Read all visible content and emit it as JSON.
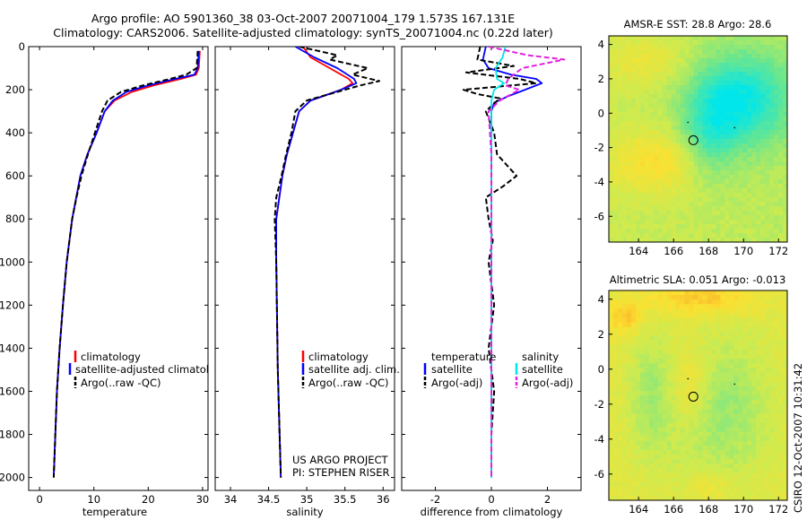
{
  "figure": {
    "title_line1": "Argo profile: AO 5901360_38 03-Oct-2007 20071004_179 1.573S 167.131E",
    "title_line2": "Climatology: CARS2006. Satellite-adjusted climatology: synTS_20071004.nc (0.22d later)",
    "project_line1": "US ARGO PROJECT",
    "project_line2": "PI: STEPHEN RISER",
    "footer_vertical": "CSIRO 12-Oct-2007 10:31:42"
  },
  "colors": {
    "climatology": "#ff0000",
    "satellite": "#0000ff",
    "argo": "#000000",
    "satellite_salinity": "#00e5e5",
    "argo_salinity": "#e020e0"
  },
  "chart_data": [
    {
      "id": "temperature",
      "type": "line",
      "xlabel": "temperature",
      "xlim": [
        -2,
        31
      ],
      "ylim": [
        0,
        2060
      ],
      "xticks": [
        "0",
        "10",
        "20",
        "30"
      ],
      "yticks": [
        "0",
        "200",
        "400",
        "600",
        "800",
        "1000",
        "1200",
        "1400",
        "1600",
        "1800",
        "2000"
      ],
      "legend": [
        "climatology",
        "satellite-adjusted climatology",
        "Argo(..raw -QC)"
      ],
      "series": [
        {
          "name": "climatology",
          "color": "#ff0000",
          "dash": "",
          "depth": [
            20,
            60,
            100,
            130,
            150,
            180,
            210,
            250,
            300,
            400,
            500,
            600,
            800,
            1000,
            1200,
            1400,
            1600,
            1800,
            2000
          ],
          "values": [
            29.5,
            29.4,
            29.3,
            28.8,
            26,
            21,
            17,
            13.8,
            12,
            10.5,
            8.8,
            7.5,
            6,
            5,
            4.3,
            3.7,
            3.2,
            2.9,
            2.6
          ]
        },
        {
          "name": "satellite-adjusted climatology",
          "color": "#0000ff",
          "dash": "",
          "depth": [
            20,
            60,
            100,
            130,
            150,
            180,
            210,
            250,
            300,
            400,
            500,
            600,
            800,
            1000,
            1200,
            1400,
            1600,
            1800,
            2000
          ],
          "values": [
            29.3,
            29.2,
            29.1,
            28.5,
            25,
            20,
            16,
            13.5,
            12,
            10.5,
            8.8,
            7.5,
            6,
            5,
            4.3,
            3.7,
            3.2,
            2.9,
            2.6
          ]
        },
        {
          "name": "Argo(..raw -QC)",
          "color": "#000000",
          "dash": "6,3",
          "depth": [
            20,
            60,
            100,
            130,
            150,
            180,
            210,
            250,
            300,
            400,
            500,
            600,
            700,
            800,
            1000,
            1200,
            1400,
            1600,
            1800,
            2000
          ],
          "values": [
            29.1,
            29,
            28.9,
            27,
            24,
            19,
            15,
            12.5,
            11.5,
            10.2,
            8.9,
            7.7,
            6.8,
            6,
            5,
            4.3,
            3.7,
            3.2,
            2.9,
            2.6
          ]
        }
      ]
    },
    {
      "id": "salinity",
      "type": "line",
      "xlabel": "salinity",
      "xlim": [
        33.8,
        36.15
      ],
      "ylim": [
        0,
        2060
      ],
      "xticks": [
        "34",
        "34.5",
        "35",
        "35.5",
        "36"
      ],
      "legend": [
        "climatology",
        "satellite adj. clim.",
        "Argo(..raw -QC)"
      ],
      "series": [
        {
          "name": "climatology",
          "color": "#ff0000",
          "dash": "",
          "depth": [
            0,
            50,
            100,
            150,
            170,
            200,
            250,
            300,
            400,
            500,
            600,
            800,
            1000,
            1500,
            2000
          ],
          "values": [
            34.95,
            35.05,
            35.3,
            35.55,
            35.6,
            35.45,
            35.05,
            34.9,
            34.82,
            34.74,
            34.68,
            34.6,
            34.6,
            34.62,
            34.66
          ]
        },
        {
          "name": "satellite adj. clim.",
          "color": "#0000ff",
          "dash": "",
          "depth": [
            0,
            50,
            100,
            150,
            170,
            200,
            250,
            300,
            400,
            500,
            600,
            800,
            1000,
            1500,
            2000
          ],
          "values": [
            34.85,
            35.1,
            35.4,
            35.62,
            35.65,
            35.45,
            35.05,
            34.9,
            34.82,
            34.74,
            34.68,
            34.6,
            34.6,
            34.62,
            34.66
          ]
        },
        {
          "name": "Argo(..raw -QC)",
          "color": "#000000",
          "dash": "6,3",
          "depth": [
            0,
            40,
            60,
            100,
            130,
            160,
            180,
            200,
            250,
            300,
            400,
            500,
            600,
            700,
            800,
            1000,
            1500,
            2000
          ],
          "values": [
            34.9,
            35.4,
            35.3,
            35.8,
            35.6,
            35.95,
            35.7,
            35.5,
            35.0,
            34.85,
            34.8,
            34.73,
            34.67,
            34.6,
            34.58,
            34.6,
            34.62,
            34.66
          ]
        }
      ]
    },
    {
      "id": "difference",
      "type": "line",
      "xlabel": "difference from climatology",
      "xlim": [
        -3.2,
        3.2
      ],
      "ylim": [
        0,
        2060
      ],
      "xticks": [
        "-2",
        "0",
        "2"
      ],
      "legend_temperature_title": "temperature",
      "legend_salinity_title": "salinity",
      "legend_temperature": [
        "satellite",
        "Argo(-adj)"
      ],
      "legend_salinity": [
        "satellite",
        "Argo(-adj)"
      ],
      "series": [
        {
          "name": "temperature satellite",
          "color": "#0000ff",
          "dash": "",
          "depth": [
            0,
            60,
            100,
            130,
            150,
            170,
            200,
            230,
            260,
            300,
            400,
            800,
            2000
          ],
          "values": [
            -0.2,
            -0.3,
            -0.1,
            0.7,
            1.6,
            1.8,
            1.2,
            0.6,
            0.1,
            0,
            0,
            0,
            0
          ]
        },
        {
          "name": "temperature Argo(-adj)",
          "color": "#000000",
          "dash": "6,3",
          "depth": [
            0,
            60,
            90,
            120,
            150,
            170,
            200,
            220,
            240,
            300,
            400,
            500,
            600,
            650,
            700,
            800,
            900,
            1000,
            1200,
            1400,
            1600,
            1800,
            2000
          ],
          "values": [
            -0.4,
            -0.5,
            0.8,
            -0.9,
            1.0,
            1.6,
            -1.0,
            -0.5,
            0.3,
            -0.2,
            0.1,
            0.2,
            0.9,
            0.4,
            -0.2,
            -0.1,
            0.05,
            -0.1,
            0.1,
            -0.1,
            0.1,
            0,
            0
          ]
        },
        {
          "name": "salinity satellite",
          "color": "#00e5e5",
          "dash": "",
          "depth": [
            0,
            50,
            100,
            150,
            170,
            200,
            250,
            300,
            400,
            800,
            2000
          ],
          "values": [
            0.5,
            0.4,
            0.15,
            0.2,
            0.45,
            0.1,
            0.0,
            0.0,
            0.0,
            0.0,
            0.0
          ]
        },
        {
          "name": "salinity Argo(-adj)",
          "color": "#e020e0",
          "dash": "6,3",
          "depth": [
            0,
            40,
            60,
            100,
            150,
            180,
            200,
            250,
            300,
            400,
            500,
            600,
            800,
            1000,
            2000
          ],
          "values": [
            -0.1,
            1.3,
            2.6,
            1.1,
            0.6,
            0.5,
            1.0,
            0.3,
            -0.1,
            -0.05,
            0,
            0,
            0,
            0,
            0
          ]
        }
      ]
    },
    {
      "id": "sst_map",
      "type": "heatmap",
      "title": "AMSR-E SST: 28.8 Argo: 28.6",
      "xticks": [
        "164",
        "166",
        "168",
        "170",
        "172"
      ],
      "yticks": [
        "4",
        "2",
        "0",
        "-2",
        "-4",
        "-6"
      ],
      "xlim": [
        162.3,
        172.5
      ],
      "ylim": [
        -7.5,
        4.5
      ],
      "marker": {
        "lon": 167.131,
        "lat": -1.573
      }
    },
    {
      "id": "sla_map",
      "type": "heatmap",
      "title": "Altimetric SLA: 0.051 Argo: -0.013",
      "xticks": [
        "164",
        "166",
        "168",
        "170",
        "172"
      ],
      "yticks": [
        "4",
        "2",
        "0",
        "-2",
        "-4",
        "-6"
      ],
      "xlim": [
        162.3,
        172.5
      ],
      "ylim": [
        -7.5,
        4.5
      ],
      "marker": {
        "lon": 167.131,
        "lat": -1.573
      }
    }
  ]
}
